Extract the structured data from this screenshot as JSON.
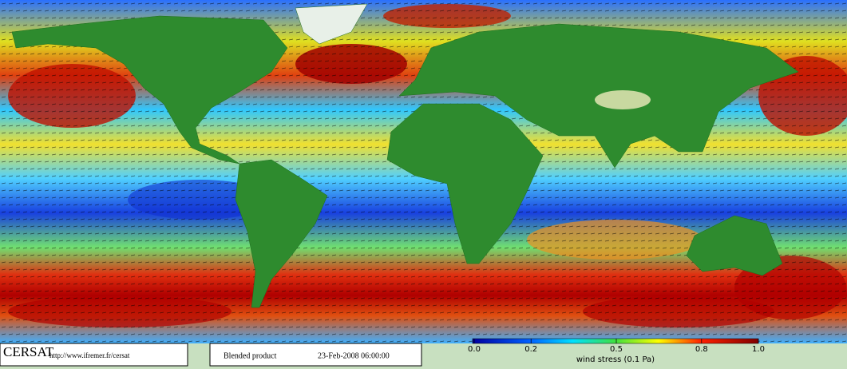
{
  "map": {
    "logo": "CERSAT",
    "url": "http://www.ifremer.fr/cersat",
    "product": "Blended product",
    "timestamp": "23-Feb-2008 06:00:00",
    "colorbar": {
      "label": "wind stress (0.1 Pa)",
      "lim": [
        0,
        1
      ],
      "ticks": [
        {
          "value": 0,
          "label": "0.0"
        },
        0.2,
        0.5,
        0.8,
        {
          "value": 1,
          "label": "1.0"
        }
      ]
    }
  }
}
